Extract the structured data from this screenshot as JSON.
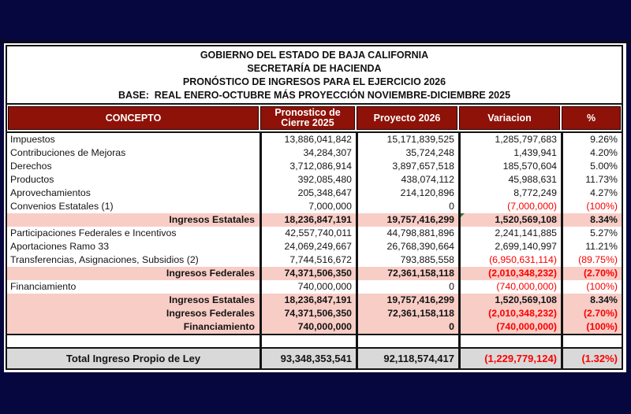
{
  "colors": {
    "page_background": "#070740",
    "header_bg": "#8e1208",
    "header_text": "#ffffff",
    "subtotal_row_bg": "#f8cdc6",
    "total_row_bg": "#d9d9d9",
    "negative_text": "#fb0000",
    "border": "#141414",
    "comment_marker_green": "#2e7d32"
  },
  "titles": {
    "line1": "GOBIERNO DEL ESTADO DE BAJA CALIFORNIA",
    "line2": "SECRETARÍA DE HACIENDA",
    "line3": "PRONÓSTICO DE INGRESOS PARA EL EJERCICIO 2026",
    "line4": "BASE:  REAL ENERO-OCTUBRE MÁS PROYECCIÓN NOVIEMBRE-DICIEMBRE 2025"
  },
  "table": {
    "columns": {
      "concepto": "CONCEPTO",
      "cierre": "Pronostico de Cierre 2025",
      "proyecto": "Proyecto 2026",
      "variacion": "Variacion",
      "pct": "%"
    },
    "rows": [
      {
        "concepto": "Impuestos",
        "cierre": "13,886,041,842",
        "proyecto": "15,171,839,525",
        "variacion": "1,285,797,683",
        "pct": "9.26%",
        "type": "normal"
      },
      {
        "concepto": "Contribuciones de Mejoras",
        "cierre": "34,284,307",
        "proyecto": "35,724,248",
        "variacion": "1,439,941",
        "pct": "4.20%",
        "type": "normal"
      },
      {
        "concepto": "Derechos",
        "cierre": "3,712,086,914",
        "proyecto": "3,897,657,518",
        "variacion": "185,570,604",
        "pct": "5.00%",
        "type": "normal"
      },
      {
        "concepto": "Productos",
        "cierre": "392,085,480",
        "proyecto": "438,074,112",
        "variacion": "45,988,631",
        "pct": "11.73%",
        "type": "normal"
      },
      {
        "concepto": "Aprovechamientos",
        "cierre": "205,348,647",
        "proyecto": "214,120,896",
        "variacion": "8,772,249",
        "pct": "4.27%",
        "type": "normal"
      },
      {
        "concepto": "Convenios Estatales (1)",
        "cierre": "7,000,000",
        "proyecto": "0",
        "variacion": "(7,000,000)",
        "pct": "(100%)",
        "type": "normal"
      },
      {
        "concepto": "Ingresos Estatales",
        "cierre": "18,236,847,191",
        "proyecto": "19,757,416,299",
        "variacion": "1,520,569,108",
        "pct": "8.34%",
        "type": "subtotal",
        "marker": true
      },
      {
        "concepto": "Participaciones Federales e Incentivos",
        "cierre": "42,557,740,011",
        "proyecto": "44,798,881,896",
        "variacion": "2,241,141,885",
        "pct": "5.27%",
        "type": "normal"
      },
      {
        "concepto": "Aportaciones Ramo 33",
        "cierre": "24,069,249,667",
        "proyecto": "26,768,390,664",
        "variacion": "2,699,140,997",
        "pct": "11.21%",
        "type": "normal"
      },
      {
        "concepto": "Transferencias, Asignaciones, Subsidios (2)",
        "cierre": "7,744,516,672",
        "proyecto": "793,885,558",
        "variacion": "(6,950,631,114)",
        "pct": "(89.75%)",
        "type": "normal"
      },
      {
        "concepto": "Ingresos Federales",
        "cierre": "74,371,506,350",
        "proyecto": "72,361,158,118",
        "variacion": "(2,010,348,232)",
        "pct": "(2.70%)",
        "type": "subtotal"
      },
      {
        "concepto": "Financiamiento",
        "cierre": "740,000,000",
        "proyecto": "0",
        "variacion": "(740,000,000)",
        "pct": "(100%)",
        "type": "normal"
      },
      {
        "concepto": "Ingresos Estatales",
        "cierre": "18,236,847,191",
        "proyecto": "19,757,416,299",
        "variacion": "1,520,569,108",
        "pct": "8.34%",
        "type": "subtotal"
      },
      {
        "concepto": "Ingresos Federales",
        "cierre": "74,371,506,350",
        "proyecto": "72,361,158,118",
        "variacion": "(2,010,348,232)",
        "pct": "(2.70%)",
        "type": "subtotal"
      },
      {
        "concepto": "Financiamiento",
        "cierre": "740,000,000",
        "proyecto": "0",
        "variacion": "(740,000,000)",
        "pct": "(100%)",
        "type": "subtotal"
      }
    ],
    "total_row": {
      "concepto": "Total Ingreso Propio de Ley",
      "cierre": "93,348,353,541",
      "proyecto": "92,118,574,417",
      "variacion": "(1,229,779,124)",
      "pct": "(1.32%)"
    }
  }
}
